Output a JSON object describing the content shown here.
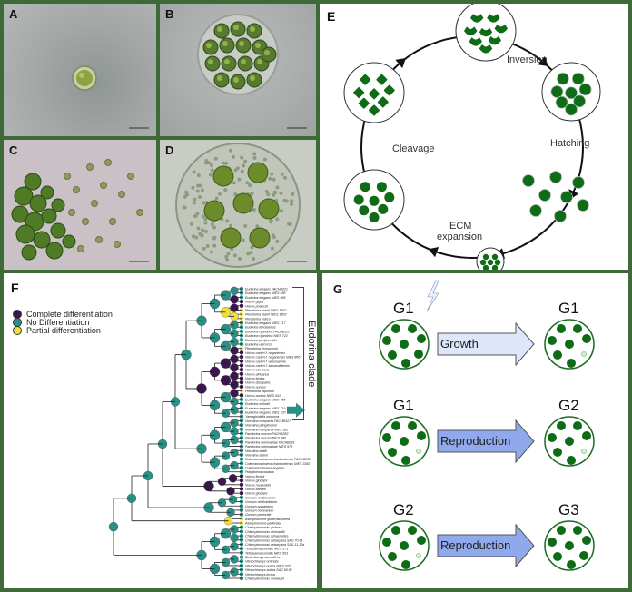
{
  "panels": {
    "a": {
      "label": "A"
    },
    "b": {
      "label": "B"
    },
    "c": {
      "label": "C"
    },
    "d": {
      "label": "D"
    },
    "e": {
      "label": "E",
      "stages": {
        "inversion": "Inversion",
        "hatching": "Hatching",
        "ecm_line1": "ECM",
        "ecm_line2": "expansion",
        "cleavage": "Cleavage"
      }
    },
    "f": {
      "label": "F",
      "legend": [
        {
          "label": "Complete differentiation",
          "color": "#3b1650"
        },
        {
          "label": "No Differentiation",
          "color": "#2a9086"
        },
        {
          "label": "Partial differentiation",
          "color": "#f1e032"
        }
      ],
      "clade_label": "Eudorina clade",
      "highlight_arrow_color": "#2a9086",
      "tips": [
        {
          "name": "Eudorina elegans FACHB321",
          "state": 1
        },
        {
          "name": "Eudorina elegans NIES 458",
          "state": 1
        },
        {
          "name": "Eudorina elegans NIES 568",
          "state": 1
        },
        {
          "name": "Volvox gigas",
          "state": 0
        },
        {
          "name": "Volvox powersii",
          "state": 0
        },
        {
          "name": "Pleodorina starrii NIES 1362",
          "state": 2
        },
        {
          "name": "Pleodorina starrii NIES 1363",
          "state": 2
        },
        {
          "name": "Pleodorina indica",
          "state": 2
        },
        {
          "name": "Eudorina elegans NIES 717",
          "state": 1
        },
        {
          "name": "Eudorina illinoisensis",
          "state": 1
        },
        {
          "name": "Eudorina cylindrica FACHB322",
          "state": 1
        },
        {
          "name": "Eudorina cylindrica NIES 722",
          "state": 1
        },
        {
          "name": "Eudorina peripherialis",
          "state": 1
        },
        {
          "name": "Eudorina unicocca",
          "state": 1
        },
        {
          "name": "Pleodorina thompsonii",
          "state": 2
        },
        {
          "name": "Volvox carteri f. nagariensis",
          "state": 0
        },
        {
          "name": "Volvox carteri f. nagariensis NIES 865",
          "state": 0
        },
        {
          "name": "Volvox carteri f. weismannia",
          "state": 0
        },
        {
          "name": "Volvox carteri f. kawasakiensis",
          "state": 0
        },
        {
          "name": "Volvox obversus",
          "state": 0
        },
        {
          "name": "Volvox africanus",
          "state": 0
        },
        {
          "name": "Volvox tertius",
          "state": 0
        },
        {
          "name": "Volvox dissipatrix",
          "state": 0
        },
        {
          "name": "Volvox aureus",
          "state": 0
        },
        {
          "name": "Pleodorina japonica",
          "state": 2
        },
        {
          "name": "Volvox aureus NIES 541",
          "state": 0
        },
        {
          "name": "Eudorina elegans NIES 456",
          "state": 1
        },
        {
          "name": "Eudorina minodii",
          "state": 1
        },
        {
          "name": "Eudorina elegans NIES 719",
          "state": 1
        },
        {
          "name": "Eudorina elegans NIES 720",
          "state": 1
        },
        {
          "name": "Yamagishiella unicocca",
          "state": 1
        },
        {
          "name": "Volvulina compacta FACHB327",
          "state": 1
        },
        {
          "name": "Volvulina pringsheimii",
          "state": 1
        },
        {
          "name": "Volvulina compacta NIES 582",
          "state": 1
        },
        {
          "name": "Pandorina morum FACHB382",
          "state": 1
        },
        {
          "name": "Pandorina morum NIES 580",
          "state": 1
        },
        {
          "name": "Pandorina colemaniae FACHB261",
          "state": 1
        },
        {
          "name": "Pandorina colemaniae NIES 573",
          "state": 1
        },
        {
          "name": "Volvulina boldii",
          "state": 1
        },
        {
          "name": "Volvulina steinii",
          "state": 1
        },
        {
          "name": "Colemanosphaera charkowiensis FACHB330",
          "state": 1
        },
        {
          "name": "Colemanosphaera charkowiensis NIES 3382",
          "state": 1
        },
        {
          "name": "Colemanosphaera angeleri",
          "state": 1
        },
        {
          "name": "Platydorina caudata",
          "state": 1
        },
        {
          "name": "Volvox ferrisii",
          "state": 0
        },
        {
          "name": "Volvox globator",
          "state": 0
        },
        {
          "name": "Volvox rousseletii",
          "state": 0
        },
        {
          "name": "Volvox barberi",
          "state": 0
        },
        {
          "name": "Volvox globator",
          "state": 0
        },
        {
          "name": "Gonium multicoccum",
          "state": 1
        },
        {
          "name": "Gonium viridistellatum",
          "state": 1
        },
        {
          "name": "Gonium quadratum",
          "state": 1
        },
        {
          "name": "Gonium octonarium",
          "state": 1
        },
        {
          "name": "Gonium pectorale",
          "state": 1
        },
        {
          "name": "Astrephomene gubernaculifera",
          "state": 2
        },
        {
          "name": "Astrephomene perforata",
          "state": 2
        },
        {
          "name": "Chlamydomonas globosa",
          "state": 1
        },
        {
          "name": "Chlamydomonas reinhardtii",
          "state": 1
        },
        {
          "name": "Chlamydomonas sphaeroides",
          "state": 1
        },
        {
          "name": "Chlamydomonas debaryana SAG 70.81",
          "state": 1
        },
        {
          "name": "Chlamydomonas debaryana SAG 11.32a",
          "state": 1
        },
        {
          "name": "Tetrabaena socialis NIES 571",
          "state": 1
        },
        {
          "name": "Tetrabaena socialis NIES 691",
          "state": 1
        },
        {
          "name": "Basichlamys sacculifera",
          "state": 1
        },
        {
          "name": "Vitreochlamys ordinata",
          "state": 1
        },
        {
          "name": "Vitreochlamys aulata NIES 570",
          "state": 1
        },
        {
          "name": "Vitreochlamys aulata SAG 80.81",
          "state": 1
        },
        {
          "name": "Vitreochlamys incisa",
          "state": 1
        },
        {
          "name": "Chlamydomonas moewusii",
          "state": 1
        }
      ]
    },
    "g": {
      "label": "G",
      "rows": [
        {
          "from": "G1",
          "to": "G1",
          "process": "Growth",
          "arrow_color": "#dde6fa",
          "stressed": true
        },
        {
          "from": "G1",
          "to": "G2",
          "process": "Reproduction",
          "arrow_color": "#8fa9ec",
          "stressed": false
        },
        {
          "from": "G2",
          "to": "G3",
          "process": "Reproduction",
          "arrow_color": "#8fa9ec",
          "stressed": false
        }
      ],
      "cell_color": "#0e6b16",
      "damaged_cell_color": "#d6efd2"
    }
  }
}
